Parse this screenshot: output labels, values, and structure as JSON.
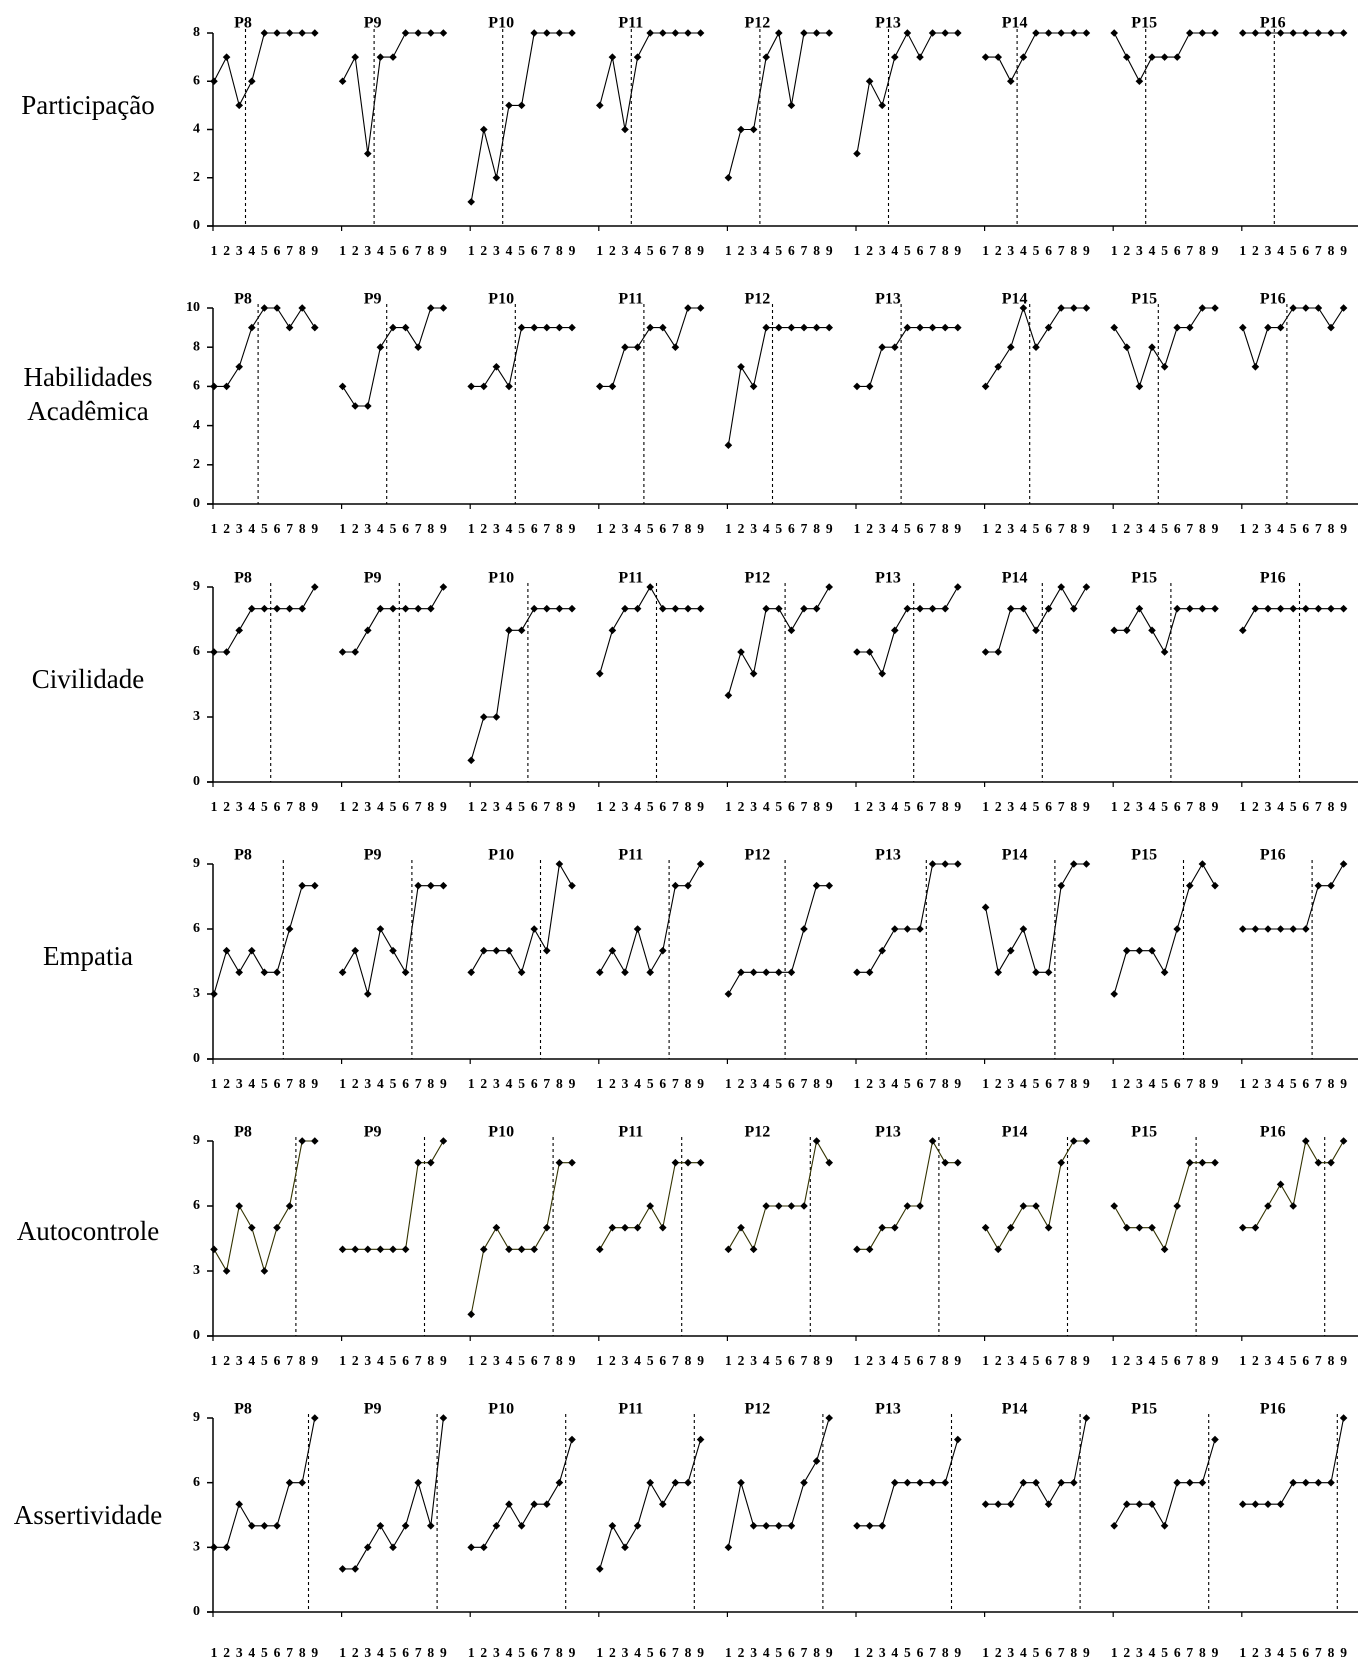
{
  "chart_data": {
    "type": "line",
    "colors": {
      "axis": "#000000",
      "line_default": "#000000",
      "line_autocontrole": "#333300",
      "marker": "#000000"
    },
    "marker": "diamond",
    "x": [
      1,
      2,
      3,
      4,
      5,
      6,
      7,
      8,
      9
    ],
    "x_tick_labels": [
      "1",
      "2",
      "3",
      "4",
      "5",
      "6",
      "7",
      "8",
      "9"
    ],
    "participants": [
      "P8",
      "P9",
      "P10",
      "P11",
      "P12",
      "P13",
      "P14",
      "P15",
      "P16"
    ],
    "rows": [
      {
        "label": [
          "Participação"
        ],
        "ylim": [
          0,
          8
        ],
        "yticks": [
          0,
          2,
          4,
          6,
          8
        ],
        "phase_change_after": [
          3.5,
          3.5,
          3.5,
          3.5,
          3.5,
          3.5,
          3.5,
          3.5,
          3.5
        ],
        "series": [
          [
            6,
            7,
            5,
            6,
            8,
            8,
            8,
            8,
            8
          ],
          [
            6,
            7,
            3,
            7,
            7,
            8,
            8,
            8,
            8
          ],
          [
            1,
            4,
            2,
            5,
            5,
            8,
            8,
            8,
            8
          ],
          [
            5,
            7,
            4,
            7,
            8,
            8,
            8,
            8,
            8
          ],
          [
            2,
            4,
            4,
            7,
            8,
            5,
            8,
            8,
            8
          ],
          [
            3,
            6,
            5,
            7,
            8,
            7,
            8,
            8,
            8
          ],
          [
            7,
            7,
            6,
            7,
            8,
            8,
            8,
            8,
            8
          ],
          [
            8,
            7,
            6,
            7,
            7,
            7,
            8,
            8,
            8
          ],
          [
            8,
            8,
            8,
            8,
            8,
            8,
            8,
            8,
            8
          ]
        ]
      },
      {
        "label": [
          "Habilidades",
          "Acadêmica"
        ],
        "ylim": [
          0,
          10
        ],
        "yticks": [
          0,
          2,
          4,
          6,
          8,
          10
        ],
        "phase_change_after": [
          4.5,
          4.5,
          4.5,
          4.5,
          4.5,
          4.5,
          4.5,
          4.5,
          4.5
        ],
        "series": [
          [
            6,
            6,
            7,
            9,
            10,
            10,
            9,
            10,
            9
          ],
          [
            6,
            5,
            5,
            8,
            9,
            9,
            8,
            10,
            10
          ],
          [
            6,
            6,
            7,
            6,
            9,
            9,
            9,
            9,
            9
          ],
          [
            6,
            6,
            8,
            8,
            9,
            9,
            8,
            10,
            10
          ],
          [
            3,
            7,
            6,
            9,
            9,
            9,
            9,
            9,
            9
          ],
          [
            6,
            6,
            8,
            8,
            9,
            9,
            9,
            9,
            9
          ],
          [
            6,
            7,
            8,
            10,
            8,
            9,
            10,
            10,
            10
          ],
          [
            9,
            8,
            6,
            8,
            7,
            9,
            9,
            10,
            10
          ],
          [
            9,
            7,
            9,
            9,
            10,
            10,
            10,
            9,
            10
          ]
        ]
      },
      {
        "label": [
          "Civilidade"
        ],
        "ylim": [
          0,
          9
        ],
        "yticks": [
          0,
          3,
          6,
          9
        ],
        "phase_change_after": [
          5.5,
          5.5,
          5.5,
          5.5,
          5.5,
          5.5,
          5.5,
          5.5,
          5.5
        ],
        "series": [
          [
            6,
            6,
            7,
            8,
            8,
            8,
            8,
            8,
            9
          ],
          [
            6,
            6,
            7,
            8,
            8,
            8,
            8,
            8,
            9
          ],
          [
            1,
            3,
            3,
            7,
            7,
            8,
            8,
            8,
            8
          ],
          [
            5,
            7,
            8,
            8,
            9,
            8,
            8,
            8,
            8
          ],
          [
            4,
            6,
            5,
            8,
            8,
            7,
            8,
            8,
            9
          ],
          [
            6,
            6,
            5,
            7,
            8,
            8,
            8,
            8,
            9
          ],
          [
            6,
            6,
            8,
            8,
            7,
            8,
            9,
            8,
            9
          ],
          [
            7,
            7,
            8,
            7,
            6,
            8,
            8,
            8,
            8
          ],
          [
            7,
            8,
            8,
            8,
            8,
            8,
            8,
            8,
            8
          ]
        ]
      },
      {
        "label": [
          "Empatia"
        ],
        "ylim": [
          0,
          9
        ],
        "yticks": [
          0,
          3,
          6,
          9
        ],
        "phase_change_after": [
          6.5,
          6.5,
          6.5,
          6.5,
          5.5,
          6.5,
          6.5,
          6.5,
          6.5
        ],
        "series": [
          [
            3,
            5,
            4,
            5,
            4,
            4,
            6,
            8,
            8
          ],
          [
            4,
            5,
            3,
            6,
            5,
            4,
            8,
            8,
            8
          ],
          [
            4,
            5,
            5,
            5,
            4,
            6,
            5,
            9,
            8
          ],
          [
            4,
            5,
            4,
            6,
            4,
            5,
            8,
            8,
            9
          ],
          [
            3,
            4,
            4,
            4,
            4,
            4,
            6,
            8,
            8
          ],
          [
            4,
            4,
            5,
            6,
            6,
            6,
            9,
            9,
            9
          ],
          [
            7,
            4,
            5,
            6,
            4,
            4,
            8,
            9,
            9
          ],
          [
            3,
            5,
            5,
            5,
            4,
            6,
            8,
            9,
            8
          ],
          [
            6,
            6,
            6,
            6,
            6,
            6,
            8,
            8,
            9
          ]
        ]
      },
      {
        "label": [
          "Autocontrole"
        ],
        "ylim": [
          0,
          9
        ],
        "yticks": [
          0,
          3,
          6,
          9
        ],
        "phase_change_after": [
          7.5,
          7.5,
          7.5,
          7.5,
          7.5,
          7.5,
          7.5,
          7.5,
          7.5
        ],
        "series": [
          [
            4,
            3,
            6,
            5,
            3,
            5,
            6,
            9,
            9
          ],
          [
            4,
            4,
            4,
            4,
            4,
            4,
            8,
            8,
            9
          ],
          [
            1,
            4,
            5,
            4,
            4,
            4,
            5,
            8,
            8
          ],
          [
            4,
            5,
            5,
            5,
            6,
            5,
            8,
            8,
            8
          ],
          [
            4,
            5,
            4,
            6,
            6,
            6,
            6,
            9,
            8
          ],
          [
            4,
            4,
            5,
            5,
            6,
            6,
            9,
            8,
            8
          ],
          [
            5,
            4,
            5,
            6,
            6,
            5,
            8,
            9,
            9
          ],
          [
            6,
            5,
            5,
            5,
            4,
            6,
            8,
            8,
            8
          ],
          [
            5,
            5,
            6,
            7,
            6,
            9,
            8,
            8,
            9
          ]
        ]
      },
      {
        "label": [
          "Assertividade"
        ],
        "ylim": [
          0,
          9
        ],
        "yticks": [
          0,
          3,
          6,
          9
        ],
        "phase_change_after": [
          8.5,
          8.5,
          8.5,
          8.5,
          8.5,
          8.5,
          8.5,
          8.5,
          8.5
        ],
        "series": [
          [
            3,
            3,
            5,
            4,
            4,
            4,
            6,
            6,
            9
          ],
          [
            2,
            2,
            3,
            4,
            3,
            4,
            6,
            4,
            9
          ],
          [
            3,
            3,
            4,
            5,
            4,
            5,
            5,
            6,
            8
          ],
          [
            2,
            4,
            3,
            4,
            6,
            5,
            6,
            6,
            8
          ],
          [
            3,
            6,
            4,
            4,
            4,
            4,
            6,
            7,
            9
          ],
          [
            4,
            4,
            4,
            6,
            6,
            6,
            6,
            6,
            8
          ],
          [
            5,
            5,
            5,
            6,
            6,
            5,
            6,
            6,
            9
          ],
          [
            4,
            5,
            5,
            5,
            4,
            6,
            6,
            6,
            8
          ],
          [
            5,
            5,
            5,
            5,
            6,
            6,
            6,
            6,
            9
          ]
        ]
      }
    ]
  }
}
